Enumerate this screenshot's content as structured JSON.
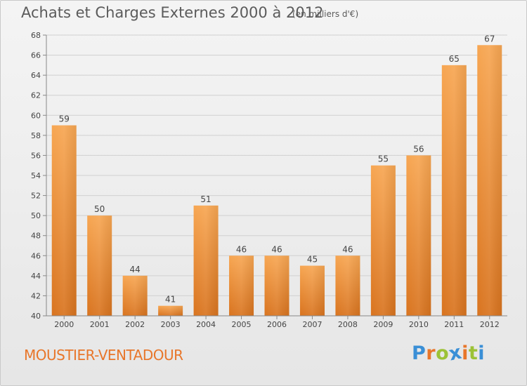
{
  "title": "Achats et Charges Externes 2000 à 2012",
  "subtitle": "(en milliers d'€)",
  "commune": "MOUSTIER-VENTADOUR",
  "logo": {
    "letters": [
      "P",
      "r",
      "o",
      "x",
      "i",
      "t",
      "i"
    ],
    "colors": [
      "#3a8fd6",
      "#e8762a",
      "#9cc236",
      "#3a8fd6",
      "#e8762a",
      "#9cc236",
      "#3a8fd6"
    ]
  },
  "colors": {
    "bar_top": "#f7a652",
    "bar_bottom": "#d9741f",
    "grid": "#d0d0d0",
    "axis_text": "#444444",
    "label_text": "#444444"
  },
  "chart_data": {
    "type": "bar",
    "categories": [
      "2000",
      "2001",
      "2002",
      "2003",
      "2004",
      "2005",
      "2006",
      "2007",
      "2008",
      "2009",
      "2010",
      "2011",
      "2012"
    ],
    "values": [
      59,
      50,
      44,
      41,
      51,
      46,
      46,
      45,
      46,
      55,
      56,
      65,
      67
    ],
    "ylim": [
      40,
      68
    ],
    "yticks": [
      40,
      42,
      44,
      46,
      48,
      50,
      52,
      54,
      56,
      58,
      60,
      62,
      64,
      66,
      68
    ],
    "xlabel": "",
    "ylabel": "",
    "grid": true,
    "data_labels": true
  }
}
